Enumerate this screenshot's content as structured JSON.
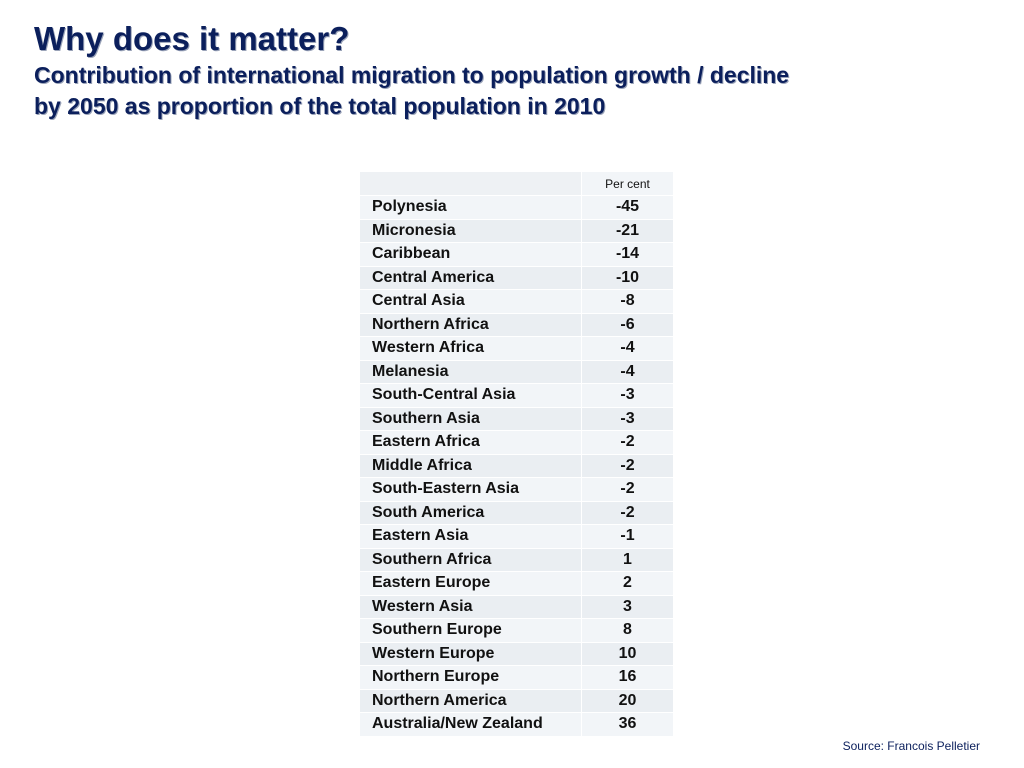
{
  "title": "Why does it matter?",
  "subtitle": "Contribution of international migration to population growth / decline  by 2050 as proportion of the total population in 2010",
  "table": {
    "header_region": "",
    "header_value": "Per cent",
    "rows": [
      {
        "region": "Polynesia",
        "value": "-45"
      },
      {
        "region": "Micronesia",
        "value": "-21"
      },
      {
        "region": "Caribbean",
        "value": "-14"
      },
      {
        "region": "Central America",
        "value": "-10"
      },
      {
        "region": "Central Asia",
        "value": "-8"
      },
      {
        "region": "Northern Africa",
        "value": "-6"
      },
      {
        "region": "Western Africa",
        "value": "-4"
      },
      {
        "region": "Melanesia",
        "value": "-4"
      },
      {
        "region": "South-Central Asia",
        "value": "-3"
      },
      {
        "region": "Southern Asia",
        "value": "-3"
      },
      {
        "region": "Eastern Africa",
        "value": "-2"
      },
      {
        "region": "Middle Africa",
        "value": "-2"
      },
      {
        "region": "South-Eastern Asia",
        "value": "-2"
      },
      {
        "region": "South America",
        "value": "-2"
      },
      {
        "region": "Eastern Asia",
        "value": "-1"
      },
      {
        "region": "Southern Africa",
        "value": "1"
      },
      {
        "region": "Eastern Europe",
        "value": "2"
      },
      {
        "region": "Western Asia",
        "value": "3"
      },
      {
        "region": "Southern Europe",
        "value": "8"
      },
      {
        "region": "Western Europe",
        "value": "10"
      },
      {
        "region": "Northern Europe",
        "value": "16"
      },
      {
        "region": "Northern America",
        "value": "20"
      },
      {
        "region": "Australia/New Zealand",
        "value": "36"
      }
    ]
  },
  "source": "Source: Francois Pelletier",
  "colors": {
    "heading": "#0b1f5c",
    "row_light": "#f2f5f8",
    "row_dark": "#eaeef2"
  }
}
